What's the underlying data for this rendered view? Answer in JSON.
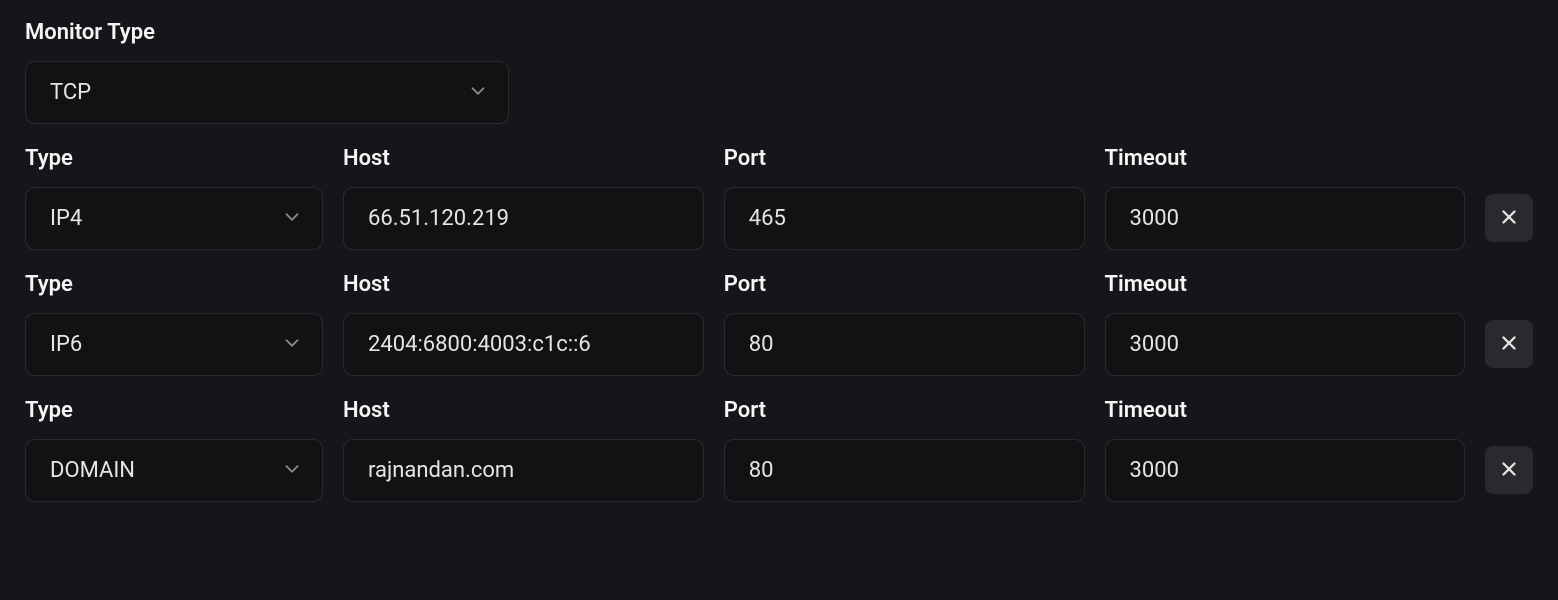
{
  "monitorType": {
    "label": "Monitor Type",
    "value": "TCP",
    "options": [
      "TCP"
    ]
  },
  "columns": {
    "type": "Type",
    "host": "Host",
    "port": "Port",
    "timeout": "Timeout"
  },
  "typeOptions": [
    "IP4",
    "IP6",
    "DOMAIN"
  ],
  "rows": [
    {
      "type": "IP4",
      "host": "66.51.120.219",
      "port": "465",
      "timeout": "3000"
    },
    {
      "type": "IP6",
      "host": "2404:6800:4003:c1c::6",
      "port": "80",
      "timeout": "3000"
    },
    {
      "type": "DOMAIN",
      "host": "rajnandan.com",
      "port": "80",
      "timeout": "3000"
    }
  ],
  "colors": {
    "background": "#16161a",
    "inputBg": "#121215",
    "border": "#2a2a2e",
    "text": "#f5f5f6",
    "inputText": "#e5e5e5",
    "iconMuted": "#8a8a8f",
    "removeBtnBg": "#2a2a2e"
  }
}
